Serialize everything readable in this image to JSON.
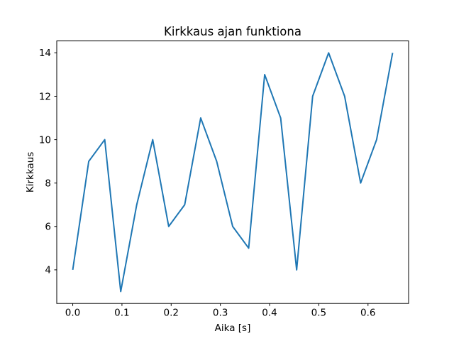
{
  "figure": {
    "background": "#ffffff",
    "spine_color": "#000000",
    "text_color": "#000000"
  },
  "chart_data": {
    "type": "line",
    "title": "Kirkkaus ajan funktiona",
    "xlabel": "Aika [s]",
    "ylabel": "Kirkkaus",
    "x": [
      0.0,
      0.0325,
      0.065,
      0.0975,
      0.13,
      0.1625,
      0.195,
      0.2275,
      0.26,
      0.2925,
      0.325,
      0.3575,
      0.39,
      0.4225,
      0.455,
      0.4875,
      0.52,
      0.5525,
      0.585,
      0.6175,
      0.65
    ],
    "y": [
      4,
      9,
      10,
      3,
      7,
      10,
      6,
      7,
      11,
      9,
      6,
      5,
      13,
      11,
      4,
      12,
      14,
      12,
      8,
      10,
      14
    ],
    "xlim": [
      -0.0325,
      0.6825
    ],
    "ylim": [
      2.45,
      14.55
    ],
    "xtick_values": [
      0.0,
      0.1,
      0.2,
      0.3,
      0.4,
      0.5,
      0.6
    ],
    "xtick_labels": [
      "0.0",
      "0.1",
      "0.2",
      "0.3",
      "0.4",
      "0.5",
      "0.6"
    ],
    "ytick_values": [
      4,
      6,
      8,
      10,
      12,
      14
    ],
    "ytick_labels": [
      "4",
      "6",
      "8",
      "10",
      "12",
      "14"
    ],
    "line_color": "#1f77b4",
    "grid": false
  }
}
